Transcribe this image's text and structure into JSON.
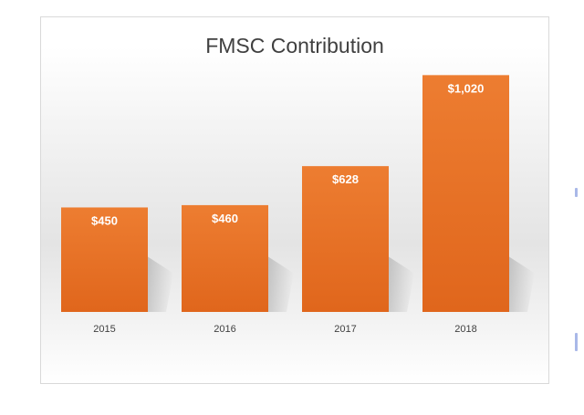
{
  "chart_data": {
    "type": "bar",
    "title": "FMSC Contribution",
    "categories": [
      "2015",
      "2016",
      "2017",
      "2018"
    ],
    "values": [
      450,
      460,
      628,
      1020
    ],
    "data_labels": [
      "$450",
      "$460",
      "$628",
      "$1,020"
    ],
    "xlabel": "",
    "ylabel": "",
    "ylim": [
      0,
      1100
    ],
    "grid": false,
    "legend": "none",
    "bar_color": "#ed7d31",
    "bar_color_dark": "#e0661c"
  }
}
